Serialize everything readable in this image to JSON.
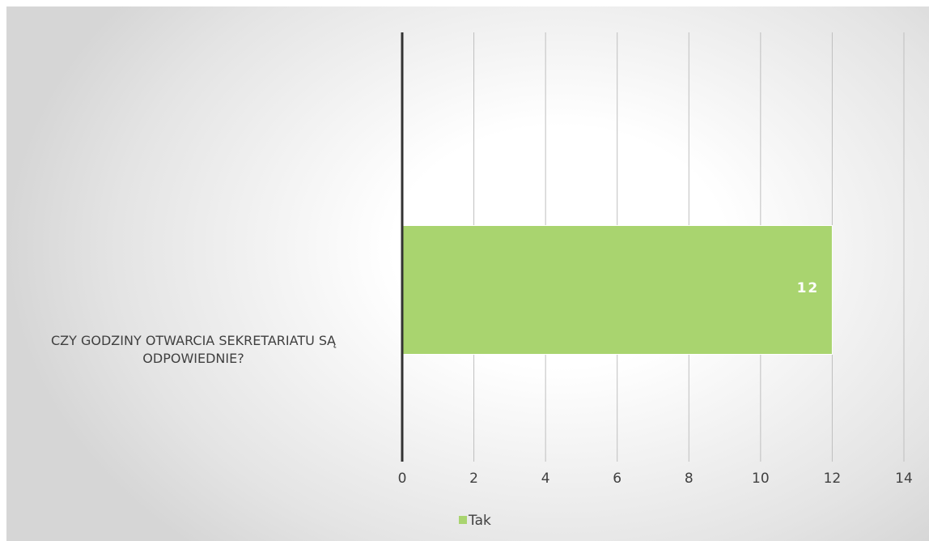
{
  "chart_data": {
    "type": "bar",
    "orientation": "horizontal",
    "categories": [
      "CZY GODZINY OTWARCIA SEKRETARIATU SĄ ODPOWIEDNIE?"
    ],
    "series": [
      {
        "name": "Tak",
        "color": "#a9d46f",
        "values": [
          12
        ],
        "value_labels": [
          "12"
        ]
      }
    ],
    "xlim": [
      0,
      14
    ],
    "xticks": [
      0,
      2,
      4,
      6,
      8,
      10,
      12,
      14
    ],
    "grid": true,
    "legend": "bottom"
  }
}
